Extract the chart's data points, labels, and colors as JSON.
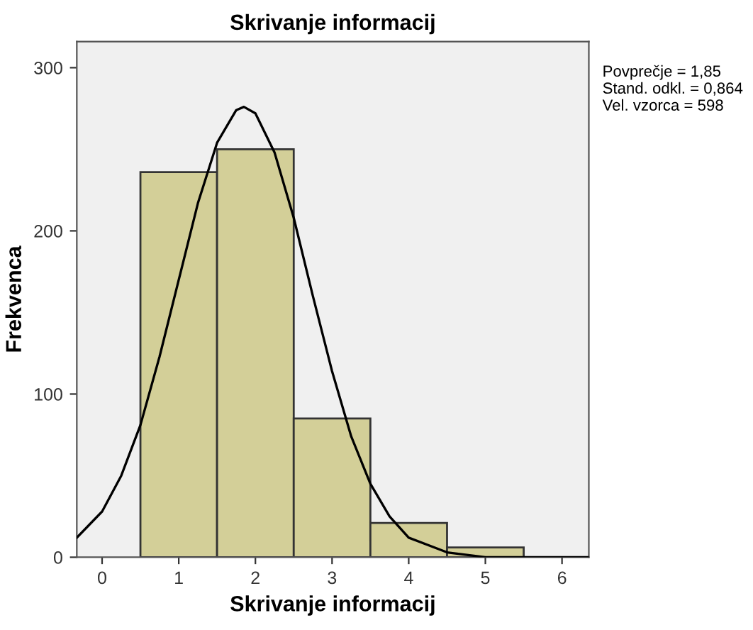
{
  "chart_data": {
    "type": "histogram",
    "title": "Skrivanje informacij",
    "xlabel": "Skrivanje informacij",
    "ylabel": "Frekvenca",
    "bins": [
      0.5,
      1.5,
      2.5,
      3.5,
      4.5,
      5.5
    ],
    "values": [
      236,
      250,
      85,
      21,
      6
    ],
    "color": "#d3cf98",
    "series": [
      {
        "type": "line",
        "color": "#000000",
        "x": [
          -0.33,
          0,
          0.25,
          0.5,
          0.75,
          1,
          1.25,
          1.5,
          1.75,
          1.85,
          2,
          2.25,
          2.5,
          2.75,
          3,
          3.25,
          3.5,
          3.75,
          4,
          4.5,
          5,
          5.5,
          6,
          6.35
        ],
        "values": [
          12,
          28,
          50,
          81,
          123,
          170,
          217,
          254,
          274,
          276,
          272,
          248,
          208,
          160,
          114,
          74,
          45,
          25,
          12,
          3,
          0,
          0,
          0,
          0
        ]
      }
    ],
    "xlim": [
      -0.33,
      6.35
    ],
    "xticks": [
      0,
      1,
      2,
      3,
      4,
      5,
      6
    ],
    "ylim": [
      0,
      316
    ],
    "yticks": [
      0,
      100,
      200,
      300
    ],
    "grid": false,
    "legend": false,
    "annotations": [
      "Povprečje = 1,85",
      "Stand. odkl. = 0,864",
      "Vel. vzorca = 598"
    ]
  }
}
